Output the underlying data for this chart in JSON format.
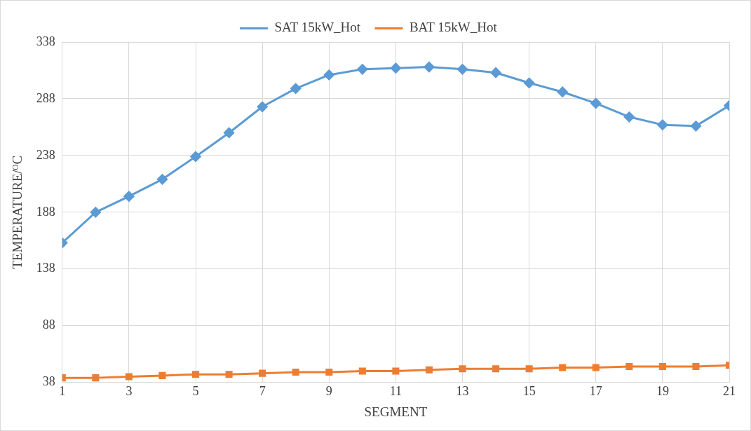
{
  "chart_data": {
    "type": "line",
    "xlabel": "SEGMENT",
    "ylabel": "TEMPERATURE/ᴼC",
    "x": [
      1,
      2,
      3,
      4,
      5,
      6,
      7,
      8,
      9,
      10,
      11,
      12,
      13,
      14,
      15,
      16,
      17,
      18,
      19,
      20,
      21
    ],
    "series": [
      {
        "name": "SAT 15kW_Hot",
        "color": "#5b9bd5",
        "marker": "diamond",
        "values": [
          161,
          188,
          202,
          217,
          237,
          258,
          281,
          297,
          309,
          314,
          315,
          316,
          314,
          311,
          302,
          294,
          284,
          272,
          265,
          264,
          282
        ]
      },
      {
        "name": "BAT 15kW_Hot",
        "color": "#ed7d31",
        "marker": "square",
        "values": [
          42,
          42,
          43,
          44,
          45,
          45,
          46,
          47,
          47,
          48,
          48,
          49,
          50,
          50,
          50,
          51,
          51,
          52,
          52,
          52,
          53
        ]
      }
    ],
    "xlim": [
      1,
      21
    ],
    "xticks": [
      1,
      3,
      5,
      7,
      9,
      11,
      13,
      15,
      17,
      19,
      21
    ],
    "ylim": [
      38,
      338
    ],
    "yticks": [
      38,
      88,
      138,
      188,
      238,
      288,
      338
    ],
    "grid": true,
    "legend": "top",
    "line_style": "solid"
  }
}
